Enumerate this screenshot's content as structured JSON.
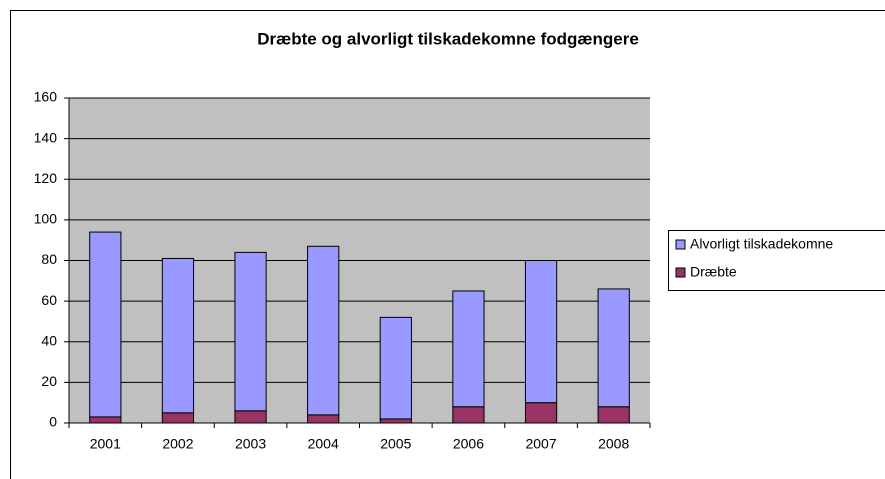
{
  "chart_data": {
    "type": "stacked_bar",
    "title": "Dræbte og alvorligt tilskadekomne fodgængere",
    "categories": [
      "2001",
      "2002",
      "2003",
      "2004",
      "2005",
      "2006",
      "2007",
      "2008"
    ],
    "series": [
      {
        "name": "Dræbte",
        "color": "#993366",
        "values": [
          3,
          5,
          6,
          4,
          2,
          8,
          10,
          8
        ]
      },
      {
        "name": "Alvorligt tilskadekomne",
        "color": "#9999ff",
        "values": [
          91,
          76,
          78,
          83,
          50,
          57,
          70,
          58
        ]
      }
    ],
    "ylim": [
      0,
      160
    ],
    "yticks": [
      0,
      20,
      40,
      60,
      80,
      100,
      120,
      140,
      160
    ],
    "grid": true,
    "legend": "right"
  }
}
